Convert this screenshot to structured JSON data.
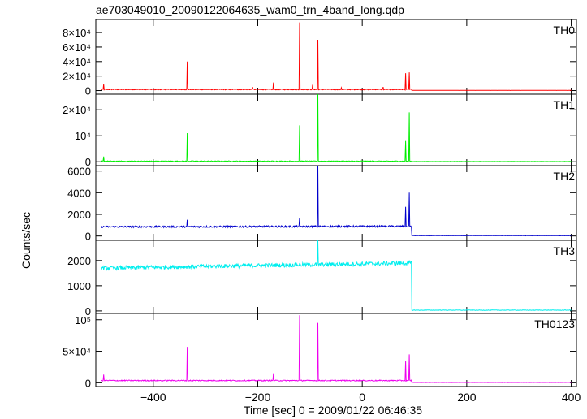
{
  "title": "ae703049010_20090122064635_wam0_trn_4band_long.qdp",
  "ylabel": "Counts/sec",
  "xlabel": "Time [sec] 0 = 2009/01/22 06:46:35",
  "chart_data": {
    "type": "line",
    "x_range": [
      -510,
      410
    ],
    "x_ticks": [
      -400,
      -200,
      0,
      200,
      400
    ],
    "x_tick_labels": [
      "−400",
      "−200",
      "0",
      "200",
      "400"
    ],
    "panels": [
      {
        "name": "TH0",
        "color": "#ff0000",
        "ylim": [
          -5000,
          98000
        ],
        "y_ticks": [
          0,
          20000,
          40000,
          60000,
          80000
        ],
        "y_tick_labels": [
          "0",
          "2×10⁴",
          "4×10⁴",
          "6×10⁴",
          "8×10⁴"
        ],
        "pre_level": [
          1500,
          1500
        ],
        "pre_noise": 600,
        "post_level": 300,
        "post_noise": 100,
        "spikes": [
          {
            "t": -495,
            "v": 9000
          },
          {
            "t": -335,
            "v": 40000
          },
          {
            "t": -210,
            "v": 5000
          },
          {
            "t": -170,
            "v": 11000
          },
          {
            "t": -120,
            "v": 94000
          },
          {
            "t": -95,
            "v": 8000
          },
          {
            "t": -85,
            "v": 70000
          },
          {
            "t": -40,
            "v": 4000
          },
          {
            "t": 40,
            "v": 5000
          },
          {
            "t": 83,
            "v": 24000
          },
          {
            "t": 90,
            "v": 25000
          }
        ]
      },
      {
        "name": "TH1",
        "color": "#00ee00",
        "ylim": [
          -1500,
          26000
        ],
        "y_ticks": [
          0,
          10000,
          20000
        ],
        "y_tick_labels": [
          "0",
          "10⁴",
          "2×10⁴"
        ],
        "pre_level": [
          200,
          200
        ],
        "pre_noise": 150,
        "post_level": 80,
        "post_noise": 40,
        "spikes": [
          {
            "t": -495,
            "v": 2000
          },
          {
            "t": -335,
            "v": 11000
          },
          {
            "t": -120,
            "v": 14000
          },
          {
            "t": -85,
            "v": 26000
          },
          {
            "t": 83,
            "v": 8000
          },
          {
            "t": 90,
            "v": 19000
          }
        ]
      },
      {
        "name": "TH2",
        "color": "#0000cc",
        "ylim": [
          -400,
          6500
        ],
        "y_ticks": [
          0,
          2000,
          4000,
          6000
        ],
        "y_tick_labels": [
          "0",
          "2000",
          "4000",
          "6000"
        ],
        "pre_level": [
          850,
          900
        ],
        "pre_noise": 80,
        "post_level": 30,
        "post_noise": 15,
        "spikes": [
          {
            "t": -335,
            "v": 1500
          },
          {
            "t": -120,
            "v": 1700
          },
          {
            "t": -85,
            "v": 6500
          },
          {
            "t": 83,
            "v": 2700
          },
          {
            "t": 90,
            "v": 4000
          }
        ]
      },
      {
        "name": "TH3",
        "color": "#00eeee",
        "ylim": [
          -100,
          2800
        ],
        "y_ticks": [
          0,
          1000,
          2000
        ],
        "y_tick_labels": [
          "0",
          "1000",
          "2000"
        ],
        "pre_level": [
          1700,
          1900
        ],
        "pre_noise": 80,
        "post_level": 30,
        "post_noise": 10,
        "spikes": [
          {
            "t": -85,
            "v": 2800
          }
        ]
      },
      {
        "name": "TH0123",
        "color": "#ee00ee",
        "ylim": [
          -6000,
          110000
        ],
        "y_ticks": [
          0,
          50000,
          100000
        ],
        "y_tick_labels": [
          "0",
          "5×10⁴",
          "10⁵"
        ],
        "pre_level": [
          3500,
          3500
        ],
        "pre_noise": 800,
        "post_level": 500,
        "post_noise": 150,
        "spikes": [
          {
            "t": -495,
            "v": 13000
          },
          {
            "t": -335,
            "v": 57000
          },
          {
            "t": -170,
            "v": 15000
          },
          {
            "t": -120,
            "v": 107000
          },
          {
            "t": -85,
            "v": 95000
          },
          {
            "t": 83,
            "v": 35000
          },
          {
            "t": 90,
            "v": 45000
          }
        ]
      }
    ],
    "drop_time": 95,
    "grid": false
  }
}
